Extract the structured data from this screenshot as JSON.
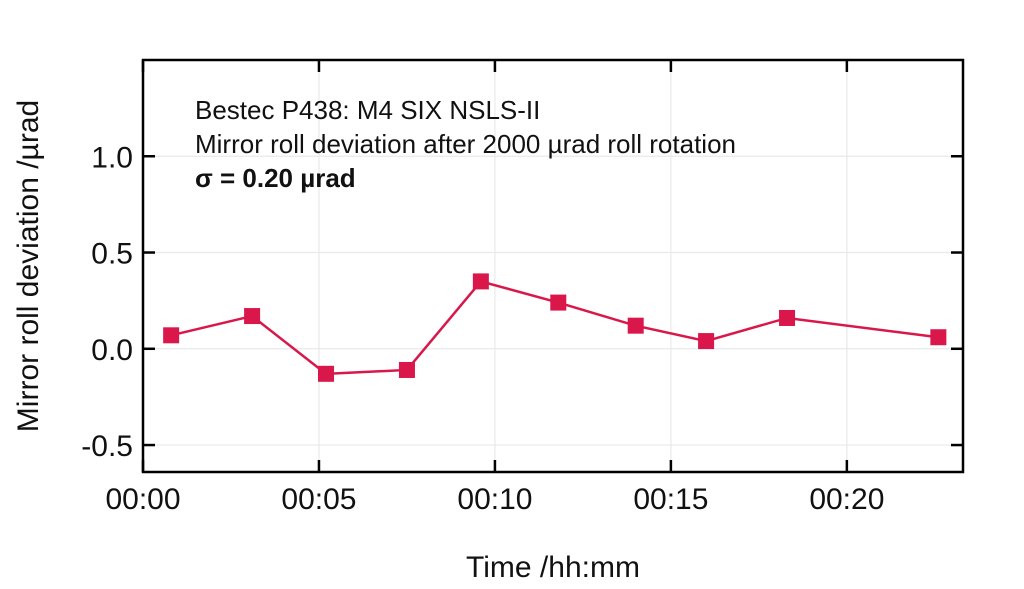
{
  "chart_data": {
    "type": "line",
    "annotation": {
      "line1": "Bestec P438: M4 SIX NSLS-II",
      "line2": "Mirror roll deviation after 2000 µrad roll rotation",
      "line3_sigma": "σ = 0.20 µrad"
    },
    "xlabel": "Time /hh:mm",
    "ylabel": "Mirror roll deviation /µrad",
    "xlim_minutes": [
      0,
      23.3
    ],
    "ylim": [
      -0.64,
      1.5
    ],
    "grid": true,
    "frame_mirrored_inward_ticks": true,
    "legend": "none",
    "xticks": [
      {
        "minute": 0,
        "label": "00:00"
      },
      {
        "minute": 5,
        "label": "00:05"
      },
      {
        "minute": 10,
        "label": "00:10"
      },
      {
        "minute": 15,
        "label": "00:15"
      },
      {
        "minute": 20,
        "label": "00:20"
      }
    ],
    "yticks": [
      {
        "value": 1.0,
        "label": "1.0"
      },
      {
        "value": 0.5,
        "label": "0.5"
      },
      {
        "value": 0.0,
        "label": "0.0"
      },
      {
        "value": -0.5,
        "label": "-0.5"
      }
    ],
    "series": [
      {
        "name": "mirror-roll-deviation",
        "marker": "square",
        "points": [
          {
            "t_min": 0.8,
            "urad": 0.07
          },
          {
            "t_min": 3.1,
            "urad": 0.17
          },
          {
            "t_min": 5.2,
            "urad": -0.13
          },
          {
            "t_min": 7.5,
            "urad": -0.11
          },
          {
            "t_min": 9.6,
            "urad": 0.35
          },
          {
            "t_min": 11.8,
            "urad": 0.24
          },
          {
            "t_min": 14.0,
            "urad": 0.12
          },
          {
            "t_min": 16.0,
            "urad": 0.04
          },
          {
            "t_min": 18.3,
            "urad": 0.16
          },
          {
            "t_min": 22.6,
            "urad": 0.06
          }
        ]
      }
    ],
    "colors": {
      "series": "#D9174A",
      "grid": "#E9E9E9",
      "axis": "#000000",
      "text": "#111111",
      "background": "#FFFFFF"
    }
  }
}
